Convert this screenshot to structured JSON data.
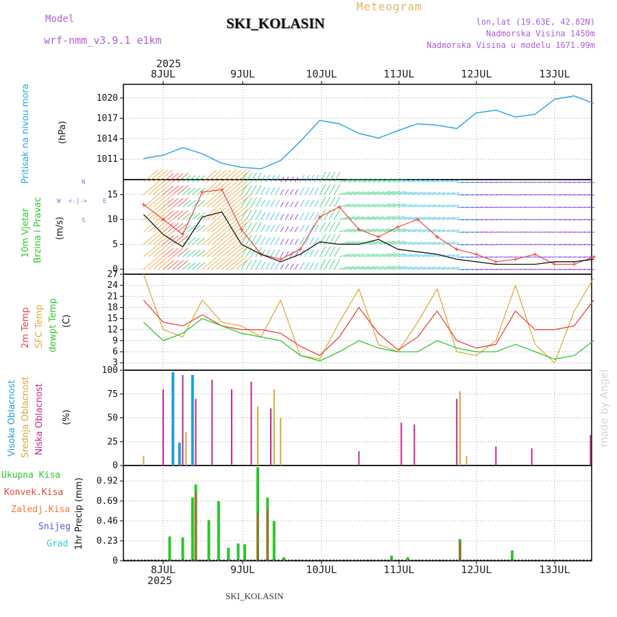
{
  "header": {
    "meteogram": "Meteogram",
    "title": "SKI_KOLASIN",
    "model_label": "Model",
    "model_name": "wrf-nmm_v3.9.1 e1km",
    "lonlat": "lon,lat (19.63E, 42.82N)",
    "elevation": "Nadmorska Visina 1450m",
    "model_elevation": "Nadmorska Visina u modelu 1671.99m",
    "year_top": "2025",
    "year_bottom": "2025",
    "footer": "SKI_KOLASIN",
    "watermark": "made by Angel"
  },
  "colors": {
    "pressure": "#2aa7e0",
    "temp2m": "#e8433c",
    "sfctemp": "#e0a93c",
    "dewpt": "#2cc52c",
    "high_cloud": "#1f9fe0",
    "mid_cloud": "#d4a83a",
    "low_cloud": "#c0268f",
    "total_precip": "#2cc52c",
    "conv_precip": "#e8433c",
    "frozen_precip": "#f07a2a",
    "snow": "#5555dd",
    "graupel": "#33cccc",
    "wind_speed": "#111111",
    "gust": "#e8433c",
    "arrow_magenta": "#c040e0"
  },
  "chart_data": {
    "type": "line",
    "x_axis": {
      "dates": [
        "8JUL",
        "9JUL",
        "10JUL",
        "11JUL",
        "12JUL",
        "13JUL"
      ],
      "start": "2025-07-07 18:00",
      "end": "2025-07-13 12:00"
    },
    "panels": [
      {
        "id": "pressure",
        "labels": [
          "Pritisak na nivou mora",
          "(hPa)"
        ],
        "ylim": [
          1008,
          1022
        ],
        "yticks": [
          1011,
          1014,
          1017,
          1020
        ],
        "series": [
          {
            "name": "Pritisak na nivou mora",
            "x": [
              "2025-07-07 18:00",
              "2025-07-08 00:00",
              "2025-07-08 06:00",
              "2025-07-08 12:00",
              "2025-07-08 18:00",
              "2025-07-09 00:00",
              "2025-07-09 06:00",
              "2025-07-09 12:00",
              "2025-07-09 18:00",
              "2025-07-10 00:00",
              "2025-07-10 06:00",
              "2025-07-10 12:00",
              "2025-07-10 18:00",
              "2025-07-11 00:00",
              "2025-07-11 06:00",
              "2025-07-11 12:00",
              "2025-07-11 18:00",
              "2025-07-12 00:00",
              "2025-07-12 06:00",
              "2025-07-12 12:00",
              "2025-07-12 18:00",
              "2025-07-13 00:00",
              "2025-07-13 06:00",
              "2025-07-13 12:00"
            ],
            "values": [
              1011.1,
              1011.6,
              1012.7,
              1011.8,
              1010.4,
              1009.8,
              1009.6,
              1010.8,
              1013.6,
              1016.7,
              1016.2,
              1014.8,
              1014.1,
              1015.2,
              1016.2,
              1016.0,
              1015.5,
              1017.8,
              1018.2,
              1017.2,
              1017.6,
              1019.8,
              1020.3,
              1019.2
            ]
          }
        ]
      },
      {
        "id": "wind",
        "labels": [
          "10m Vjetar",
          "Brzina i Pravac",
          "(m/s)"
        ],
        "ylim": [
          -1,
          18
        ],
        "yticks": [
          0,
          5,
          10,
          15
        ],
        "compass": {
          "n": "N",
          "w": "W",
          "e": "E",
          "s": "S"
        },
        "series": [
          {
            "name": "Brzina",
            "x": [
              "2025-07-07 18:00",
              "2025-07-08 00:00",
              "2025-07-08 06:00",
              "2025-07-08 12:00",
              "2025-07-08 18:00",
              "2025-07-09 00:00",
              "2025-07-09 06:00",
              "2025-07-09 12:00",
              "2025-07-09 18:00",
              "2025-07-10 00:00",
              "2025-07-10 06:00",
              "2025-07-10 12:00",
              "2025-07-10 18:00",
              "2025-07-11 00:00",
              "2025-07-11 06:00",
              "2025-07-11 12:00",
              "2025-07-11 18:00",
              "2025-07-12 00:00",
              "2025-07-12 06:00",
              "2025-07-12 12:00",
              "2025-07-12 18:00",
              "2025-07-13 00:00",
              "2025-07-13 06:00",
              "2025-07-13 12:00"
            ],
            "values": [
              11,
              7,
              4.5,
              10.5,
              11.5,
              5,
              3,
              1.5,
              3,
              5.5,
              5,
              5,
              6,
              4,
              3.5,
              3,
              2,
              1.5,
              1,
              1,
              1,
              1.5,
              1.5,
              2
            ]
          },
          {
            "name": "Udari",
            "x": [
              "2025-07-07 18:00",
              "2025-07-08 00:00",
              "2025-07-08 06:00",
              "2025-07-08 12:00",
              "2025-07-08 18:00",
              "2025-07-09 00:00",
              "2025-07-09 06:00",
              "2025-07-09 12:00",
              "2025-07-09 18:00",
              "2025-07-10 00:00",
              "2025-07-10 06:00",
              "2025-07-10 12:00",
              "2025-07-10 18:00",
              "2025-07-11 00:00",
              "2025-07-11 06:00",
              "2025-07-11 12:00",
              "2025-07-11 18:00",
              "2025-07-12 00:00",
              "2025-07-12 06:00",
              "2025-07-12 12:00",
              "2025-07-12 18:00",
              "2025-07-13 00:00",
              "2025-07-13 06:00",
              "2025-07-13 12:00"
            ],
            "values": [
              13,
              10,
              7,
              15.5,
              16,
              8,
              3,
              2,
              4,
              10.5,
              12.5,
              8,
              6.5,
              8.5,
              10,
              6.5,
              4,
              3,
              1.5,
              2,
              3,
              1,
              1,
              2.5
            ]
          }
        ]
      },
      {
        "id": "temperature",
        "labels": [
          "2m Temp",
          "SFC Temp",
          "dewpt Temp",
          "(C)"
        ],
        "ylim": [
          1,
          27
        ],
        "yticks": [
          3,
          6,
          9,
          12,
          15,
          18,
          21,
          24,
          27
        ],
        "series": [
          {
            "name": "2m Temp",
            "x": [
              "2025-07-07 18:00",
              "2025-07-08 00:00",
              "2025-07-08 06:00",
              "2025-07-08 12:00",
              "2025-07-08 18:00",
              "2025-07-09 00:00",
              "2025-07-09 06:00",
              "2025-07-09 12:00",
              "2025-07-09 18:00",
              "2025-07-10 00:00",
              "2025-07-10 06:00",
              "2025-07-10 12:00",
              "2025-07-10 18:00",
              "2025-07-11 00:00",
              "2025-07-11 06:00",
              "2025-07-11 12:00",
              "2025-07-11 18:00",
              "2025-07-12 00:00",
              "2025-07-12 06:00",
              "2025-07-12 12:00",
              "2025-07-12 18:00",
              "2025-07-13 00:00",
              "2025-07-13 06:00",
              "2025-07-13 12:00"
            ],
            "values": [
              20,
              14,
              13,
              16,
              13,
              12,
              12,
              11,
              7.5,
              5,
              10,
              18,
              11,
              6.5,
              10,
              17,
              9,
              7,
              8,
              17,
              12,
              12,
              13,
              20
            ]
          },
          {
            "name": "SFC Temp",
            "x": [
              "2025-07-07 18:00",
              "2025-07-08 00:00",
              "2025-07-08 06:00",
              "2025-07-08 12:00",
              "2025-07-08 18:00",
              "2025-07-09 00:00",
              "2025-07-09 06:00",
              "2025-07-09 12:00",
              "2025-07-09 18:00",
              "2025-07-10 00:00",
              "2025-07-10 06:00",
              "2025-07-10 12:00",
              "2025-07-10 18:00",
              "2025-07-11 00:00",
              "2025-07-11 06:00",
              "2025-07-11 12:00",
              "2025-07-11 18:00",
              "2025-07-12 00:00",
              "2025-07-12 06:00",
              "2025-07-12 12:00",
              "2025-07-12 18:00",
              "2025-07-13 00:00",
              "2025-07-13 06:00",
              "2025-07-13 12:00"
            ],
            "values": [
              27,
              12,
              10,
              20,
              14,
              13,
              10,
              20,
              5,
              4,
              14,
              23,
              8,
              6,
              14,
              23,
              6,
              5,
              9,
              24,
              8,
              3,
              17,
              26
            ]
          },
          {
            "name": "dewpt Temp",
            "x": [
              "2025-07-07 18:00",
              "2025-07-08 00:00",
              "2025-07-08 06:00",
              "2025-07-08 12:00",
              "2025-07-08 18:00",
              "2025-07-09 00:00",
              "2025-07-09 06:00",
              "2025-07-09 12:00",
              "2025-07-09 18:00",
              "2025-07-10 00:00",
              "2025-07-10 06:00",
              "2025-07-10 12:00",
              "2025-07-10 18:00",
              "2025-07-11 00:00",
              "2025-07-11 06:00",
              "2025-07-11 12:00",
              "2025-07-11 18:00",
              "2025-07-12 00:00",
              "2025-07-12 06:00",
              "2025-07-12 12:00",
              "2025-07-12 18:00",
              "2025-07-13 00:00",
              "2025-07-13 06:00",
              "2025-07-13 12:00"
            ],
            "values": [
              14,
              9,
              11,
              15,
              13,
              11,
              10,
              9,
              5,
              3.5,
              6,
              9,
              7,
              6,
              6,
              9,
              7,
              6,
              6,
              8,
              6,
              4,
              5,
              9
            ]
          }
        ]
      },
      {
        "id": "cloud",
        "labels": [
          "Visoka Oblacnost",
          "Srednja Oblacnost",
          "Niska Oblacnost",
          "(%)"
        ],
        "ylim": [
          0,
          100
        ],
        "yticks": [
          0,
          25,
          50,
          75,
          100
        ],
        "series": [
          {
            "name": "Visoka Oblacnost",
            "x": [
              "2025-07-08 03:00",
              "2025-07-08 05:00",
              "2025-07-08 09:00"
            ],
            "values": [
              98,
              24,
              95
            ]
          },
          {
            "name": "Srednja Oblacnost",
            "x": [
              "2025-07-07 18:00",
              "2025-07-08 07:00",
              "2025-07-09 05:00",
              "2025-07-09 10:00",
              "2025-07-09 12:00",
              "2025-07-11 19:00",
              "2025-07-11 21:00"
            ],
            "values": [
              10,
              35,
              62,
              80,
              50,
              78,
              10
            ]
          },
          {
            "name": "Niska Oblacnost",
            "x": [
              "2025-07-08 00:00",
              "2025-07-08 06:00",
              "2025-07-08 10:00",
              "2025-07-08 15:00",
              "2025-07-08 21:00",
              "2025-07-09 03:00",
              "2025-07-09 09:00",
              "2025-07-10 12:00",
              "2025-07-11 01:00",
              "2025-07-11 05:00",
              "2025-07-11 18:00",
              "2025-07-12 06:00",
              "2025-07-12 17:00",
              "2025-07-13 11:00"
            ],
            "values": [
              80,
              95,
              70,
              90,
              80,
              88,
              60,
              15,
              45,
              43,
              70,
              20,
              18,
              32
            ]
          }
        ]
      },
      {
        "id": "precip",
        "labels": [
          "Ukupna Kisa",
          "Konvek.Kisa",
          "Zaledj.Kisa",
          "Snijeg",
          "Grad",
          "1hr Precip (mm)"
        ],
        "ylim": [
          0,
          1.1
        ],
        "yticks": [
          0,
          0.23,
          0.46,
          0.69,
          0.92
        ],
        "series": [
          {
            "name": "Ukupna Kisa",
            "x": [
              "2025-07-08 02:00",
              "2025-07-08 06:00",
              "2025-07-08 09:00",
              "2025-07-08 10:00",
              "2025-07-08 14:00",
              "2025-07-08 17:00",
              "2025-07-08 20:00",
              "2025-07-08 23:00",
              "2025-07-09 01:00",
              "2025-07-09 05:00",
              "2025-07-09 08:00",
              "2025-07-09 10:00",
              "2025-07-09 13:00",
              "2025-07-10 22:00",
              "2025-07-11 03:00",
              "2025-07-11 19:00",
              "2025-07-12 11:00"
            ],
            "values": [
              0.28,
              0.27,
              0.73,
              0.88,
              0.47,
              0.69,
              0.15,
              0.2,
              0.19,
              1.08,
              0.73,
              0.46,
              0.04,
              0.06,
              0.04,
              0.25,
              0.12
            ]
          },
          {
            "name": "Konvek.Kisa",
            "x": [
              "2025-07-08 10:00",
              "2025-07-09 05:00",
              "2025-07-09 08:00",
              "2025-07-11 19:00"
            ],
            "values": [
              0.78,
              0.55,
              0.6,
              0.22
            ]
          }
        ]
      }
    ]
  }
}
